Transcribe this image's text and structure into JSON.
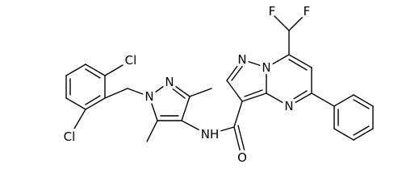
{
  "molecule": {
    "atom_labels": [
      "Cl",
      "Cl",
      "N",
      "N",
      "NH",
      "O",
      "N",
      "N",
      "N",
      "F",
      "F"
    ]
  }
}
